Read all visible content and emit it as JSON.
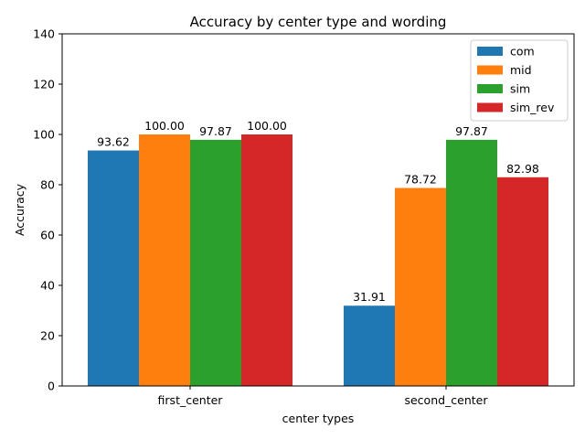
{
  "chart_data": {
    "type": "bar",
    "title": "Accuracy by center type and wording",
    "xlabel": "center types",
    "ylabel": "Accuracy",
    "categories": [
      "first_center",
      "second_center"
    ],
    "ylim": [
      0,
      140
    ],
    "yticks": [
      0,
      20,
      40,
      60,
      80,
      100,
      120,
      140
    ],
    "series": [
      {
        "name": "com",
        "color": "#1f77b4",
        "values": [
          93.62,
          31.91
        ],
        "labels": [
          "93.62",
          "31.91"
        ]
      },
      {
        "name": "mid",
        "color": "#ff7f0e",
        "values": [
          100.0,
          78.72
        ],
        "labels": [
          "100.00",
          "78.72"
        ]
      },
      {
        "name": "sim",
        "color": "#2ca02c",
        "values": [
          97.87,
          97.87
        ],
        "labels": [
          "97.87",
          "97.87"
        ]
      },
      {
        "name": "sim_rev",
        "color": "#d62728",
        "values": [
          100.0,
          82.98
        ],
        "labels": [
          "100.00",
          "82.98"
        ]
      }
    ],
    "legend_position": "top-right",
    "grid": false
  }
}
